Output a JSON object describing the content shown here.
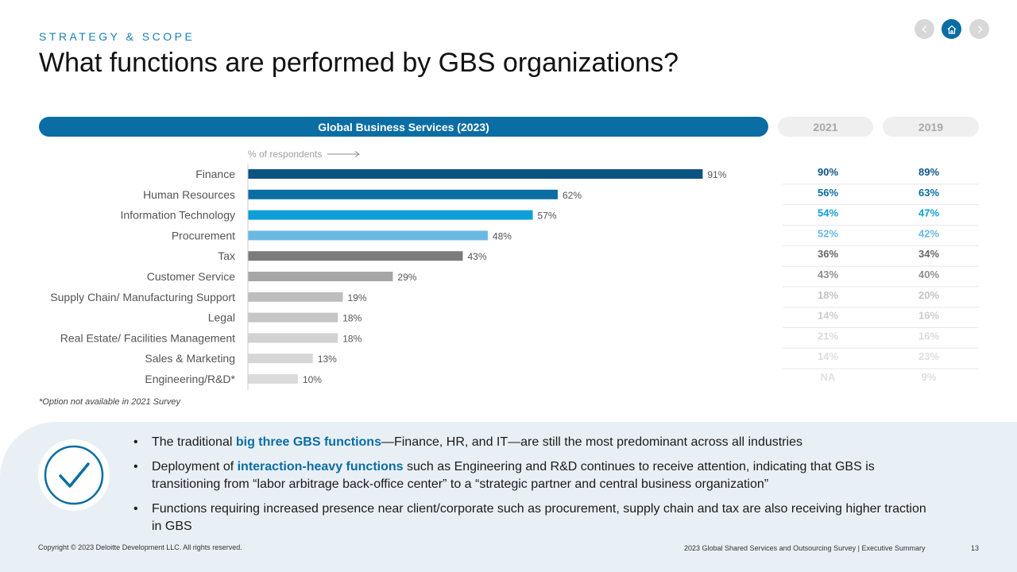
{
  "header": {
    "eyebrow": "STRATEGY & SCOPE",
    "title": "What functions are performed by GBS organizations?"
  },
  "nav": {
    "prev_icon": "chevron-left-icon",
    "home_icon": "home-icon",
    "next_icon": "chevron-right-icon"
  },
  "pills": {
    "main": "Global Business Services (2023)",
    "col_2021": "2021",
    "col_2019": "2019"
  },
  "respondents_note": "% of respondents",
  "chart_data": {
    "type": "bar",
    "orientation": "horizontal",
    "categories": [
      "Finance",
      "Human Resources",
      "Information Technology",
      "Procurement",
      "Tax",
      "Customer Service",
      "Supply Chain/ Manufacturing Support",
      "Legal",
      "Real Estate/ Facilities Management",
      "Sales & Marketing",
      "Engineering/R&D*"
    ],
    "values": [
      91,
      62,
      57,
      48,
      43,
      29,
      19,
      18,
      18,
      13,
      10
    ],
    "value_labels": [
      "91%",
      "62%",
      "57%",
      "48%",
      "43%",
      "29%",
      "19%",
      "18%",
      "18%",
      "13%",
      "10%"
    ],
    "bar_colors": [
      "#0b5482",
      "#0a6da3",
      "#0e9fd8",
      "#6ab9e5",
      "#7b7b7b",
      "#a6a6a6",
      "#bdbdbd",
      "#c6c6c6",
      "#d2d2d2",
      "#d6d6d6",
      "#dbdbdb"
    ],
    "xlim": [
      0,
      100
    ],
    "col_2021": [
      "90%",
      "56%",
      "54%",
      "52%",
      "36%",
      "43%",
      "18%",
      "14%",
      "21%",
      "14%",
      "NA"
    ],
    "col_2019": [
      "89%",
      "63%",
      "47%",
      "42%",
      "34%",
      "40%",
      "20%",
      "16%",
      "16%",
      "23%",
      "9%"
    ],
    "col_colors": [
      "#0b5482",
      "#0a6da3",
      "#0e9fd8",
      "#6ab9e5",
      "#666666",
      "#8f8f8f",
      "#c3c3c3",
      "#cccccc",
      "#dadada",
      "#dedede",
      "#e0e0e0"
    ]
  },
  "footnote": "*Option not available in 2021 Survey",
  "bullets": [
    {
      "pre": "The traditional ",
      "hl": "big three GBS functions",
      "post": "—Finance, HR, and IT—are still the most predominant across all industries"
    },
    {
      "pre": "Deployment of ",
      "hl": "interaction-heavy functions",
      "post": " such as Engineering and R&D continues to receive attention, indicating that GBS is transitioning from “labor arbitrage back-office center” to a “strategic partner and central business organization”"
    },
    {
      "pre": "Functions requiring increased presence near client/corporate such as procurement, supply chain and tax are also receiving higher traction in GBS",
      "hl": "",
      "post": ""
    }
  ],
  "footer": {
    "copyright": "Copyright © 2023 Deloitte Development LLC. All rights reserved.",
    "survey": "2023 Global Shared Services and Outsourcing Survey | Executive Summary",
    "page": "13"
  },
  "colors": {
    "accent": "#0a6da3",
    "panel": "#e9f0f5"
  }
}
